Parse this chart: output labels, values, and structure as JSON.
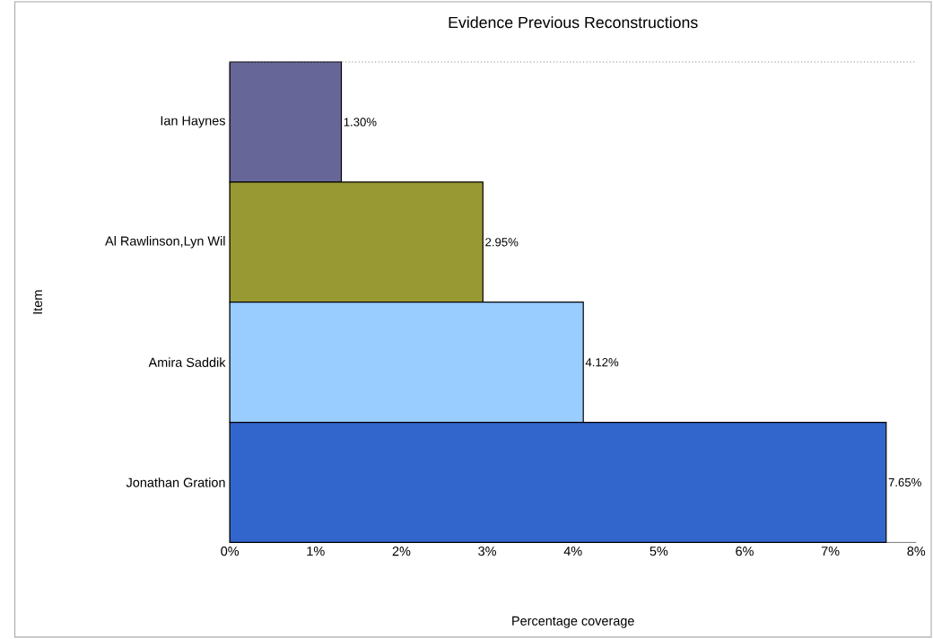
{
  "chart_data": {
    "type": "bar",
    "orientation": "horizontal",
    "title": "Evidence Previous Reconstructions",
    "xlabel": "Percentage coverage",
    "ylabel": "Item",
    "categories": [
      "Ian Haynes",
      "Al Rawlinson,Lyn Wil",
      "Amira Saddik",
      "Jonathan Gration"
    ],
    "values": [
      1.3,
      2.95,
      4.12,
      7.65
    ],
    "value_labels": [
      "1.30%",
      "2.95%",
      "4.12%",
      "7.65%"
    ],
    "colors": [
      "#666699",
      "#999933",
      "#99ccff",
      "#3366cc"
    ],
    "xlim": [
      0,
      8
    ],
    "xticks": [
      {
        "value": 0,
        "label": "0%"
      },
      {
        "value": 1,
        "label": "1%"
      },
      {
        "value": 2,
        "label": "2%"
      },
      {
        "value": 3,
        "label": "3%"
      },
      {
        "value": 4,
        "label": "4%"
      },
      {
        "value": 5,
        "label": "5%"
      },
      {
        "value": 6,
        "label": "6%"
      },
      {
        "value": 7,
        "label": "7%"
      },
      {
        "value": 8,
        "label": "8%"
      }
    ],
    "grid": false
  }
}
